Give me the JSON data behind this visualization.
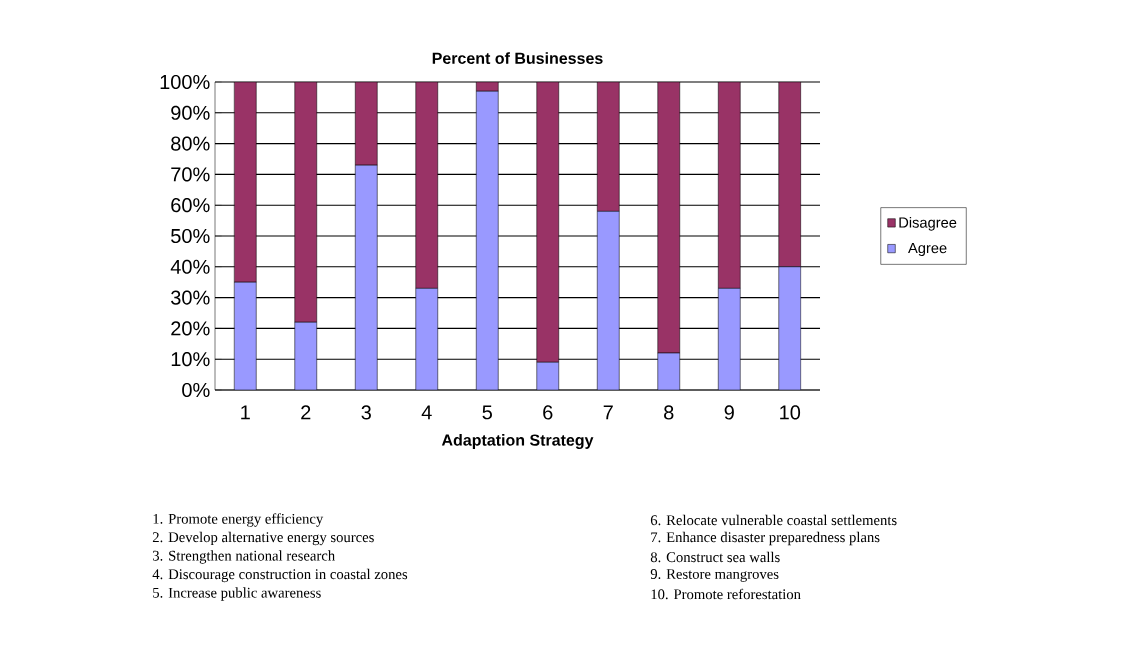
{
  "chart_data": {
    "type": "bar",
    "stacked": true,
    "title": "Percent of Businesses",
    "xlabel": "Adaptation Strategy",
    "categories": [
      "1",
      "2",
      "3",
      "4",
      "5",
      "6",
      "7",
      "8",
      "9",
      "10"
    ],
    "series": [
      {
        "name": "Agree",
        "color": "#9999ff",
        "values": [
          35,
          22,
          73,
          33,
          97,
          9,
          58,
          12,
          33,
          40
        ]
      },
      {
        "name": "Disagree",
        "color": "#993366",
        "values": [
          65,
          78,
          27,
          67,
          3,
          91,
          42,
          88,
          67,
          60
        ]
      }
    ],
    "ylim": [
      0,
      100
    ],
    "yticks": [
      {
        "value": 0,
        "label": "0%"
      },
      {
        "value": 10,
        "label": "10%"
      },
      {
        "value": 20,
        "label": "20%"
      },
      {
        "value": 30,
        "label": "30%"
      },
      {
        "value": 40,
        "label": "40%"
      },
      {
        "value": 50,
        "label": "50%"
      },
      {
        "value": 60,
        "label": "60%"
      },
      {
        "value": 70,
        "label": "70%"
      },
      {
        "value": 80,
        "label": "80%"
      },
      {
        "value": 90,
        "label": "90%"
      },
      {
        "value": 100,
        "label": "100%"
      }
    ],
    "grid": "y",
    "legend": "right",
    "annotations": [
      "1. Promote energy efficiency",
      "2. Develop alternative energy sources",
      "3. Strengthen national research",
      "4. Discourage construction in coastal zones",
      "5. Increase public awareness",
      "6. Relocate vulnerable coastal settlements",
      "7. Enhance disaster preparedness plans",
      "8. Construct sea walls",
      "9. Restore mangroves",
      "10. Promote reforestation"
    ]
  }
}
